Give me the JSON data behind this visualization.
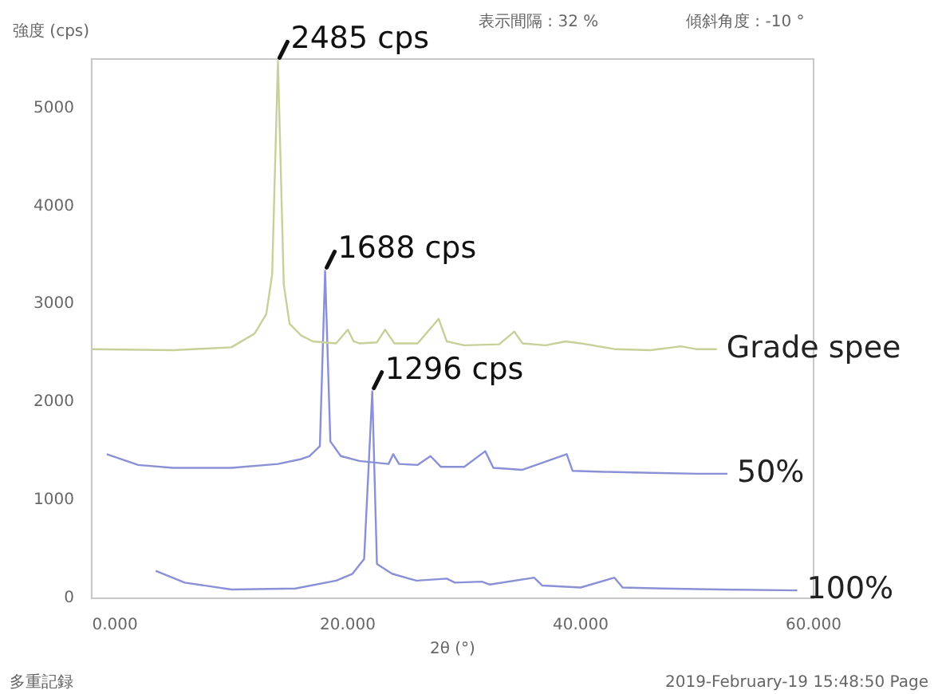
{
  "chart_data": {
    "type": "line",
    "xlabel": "2θ (°)",
    "ylabel": "強度 (cps)",
    "xlim": [
      -2,
      60
    ],
    "ylim": [
      0,
      5500
    ],
    "xticks": [
      {
        "value": 0,
        "label": "0.000"
      },
      {
        "value": 20,
        "label": "20.000"
      },
      {
        "value": 40,
        "label": "40.000"
      },
      {
        "value": 60,
        "label": "60.000"
      }
    ],
    "yticks": [
      0,
      1000,
      2000,
      3000,
      4000,
      5000
    ],
    "grid": false,
    "legend": false,
    "marker": "none",
    "line_style": "solid",
    "series": [
      {
        "name": "Grade spee",
        "color": "#c5d198",
        "x": [
          -2,
          5,
          10,
          12,
          13,
          13.5,
          14,
          14.5,
          15,
          16,
          17,
          19,
          20,
          20.5,
          21,
          22.5,
          23.2,
          24,
          26,
          27.8,
          28.5,
          30,
          33,
          34.3,
          35,
          37,
          38.7,
          40,
          43,
          46,
          48.6,
          50,
          51.7
        ],
        "values": [
          2540,
          2530,
          2560,
          2700,
          2900,
          3300,
          5480,
          3200,
          2800,
          2680,
          2620,
          2600,
          2740,
          2620,
          2600,
          2610,
          2740,
          2600,
          2600,
          2850,
          2620,
          2580,
          2590,
          2720,
          2600,
          2580,
          2620,
          2600,
          2540,
          2530,
          2570,
          2540,
          2540
        ]
      },
      {
        "name": "50%",
        "color": "#8a90d6",
        "x": [
          -0.7,
          2,
          5,
          10,
          14,
          16,
          16.7,
          17.6,
          18.05,
          18.5,
          19.4,
          21,
          23.5,
          23.9,
          24.4,
          26,
          27.1,
          28,
          30,
          31.8,
          32.5,
          35,
          38.8,
          39.3,
          42,
          46,
          50,
          52.6
        ],
        "values": [
          1470,
          1360,
          1330,
          1330,
          1370,
          1420,
          1450,
          1550,
          3340,
          1600,
          1450,
          1400,
          1370,
          1470,
          1370,
          1360,
          1450,
          1340,
          1340,
          1500,
          1330,
          1310,
          1470,
          1300,
          1290,
          1280,
          1270,
          1270
        ]
      },
      {
        "name": "100%",
        "color": "#8a90d6",
        "x": [
          3.5,
          6,
          10,
          15.5,
          19,
          20.4,
          21.4,
          22.1,
          22.5,
          23.8,
          25.9,
          28.5,
          29.2,
          31.5,
          32.2,
          36,
          36.7,
          40,
          42.9,
          43.6,
          47,
          52,
          58.6
        ],
        "values": [
          280,
          160,
          90,
          100,
          180,
          250,
          400,
          2110,
          350,
          250,
          180,
          200,
          160,
          170,
          140,
          210,
          130,
          110,
          210,
          110,
          100,
          90,
          80
        ]
      }
    ],
    "annotations": [
      {
        "text": "2485 cps",
        "x": 14,
        "y": 5480
      },
      {
        "text": "1688 cps",
        "x": 18.05,
        "y": 3340
      },
      {
        "text": "1296 cps",
        "x": 22.1,
        "y": 2110
      },
      "表示間隔 : 32 %",
      "傾斜角度 : -10 °",
      "多重記録",
      "2019-February-19 15:48:50 Page"
    ]
  }
}
